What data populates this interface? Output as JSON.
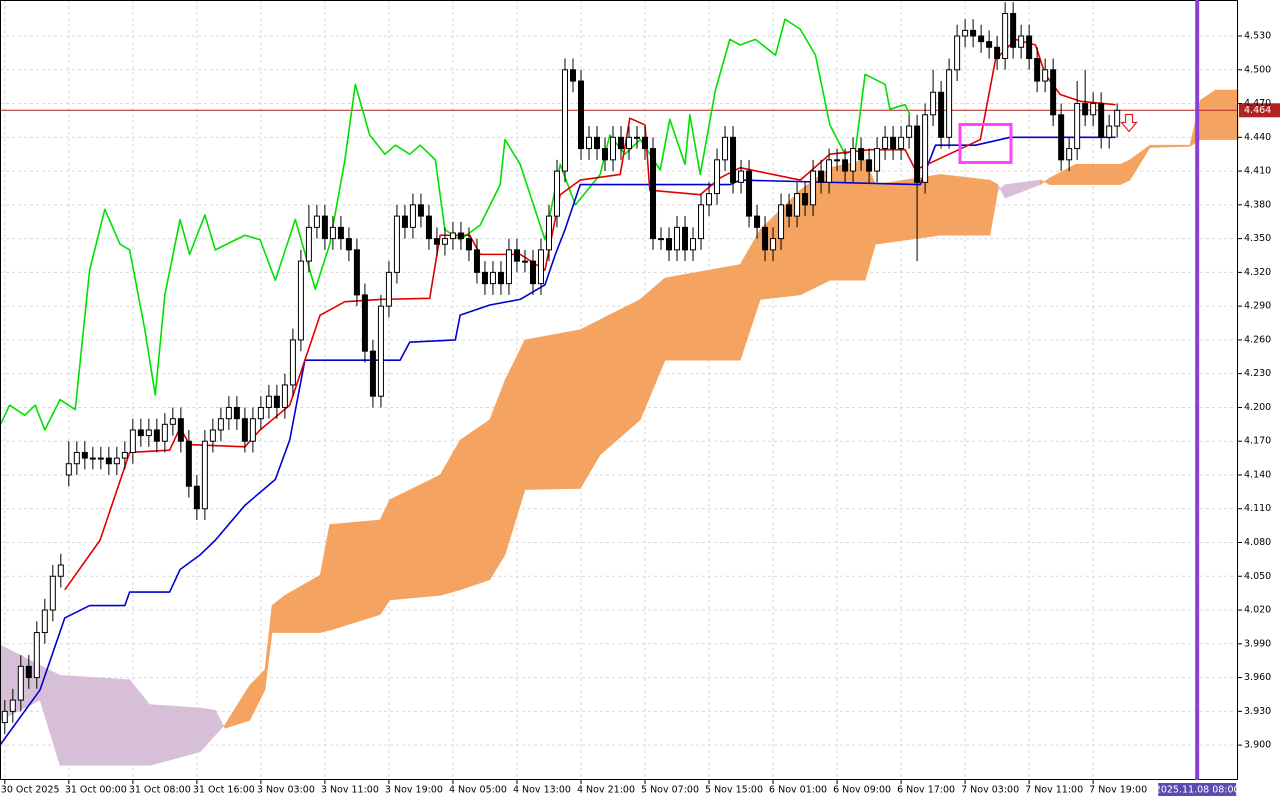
{
  "chart_data": {
    "type": "candlestick",
    "xlim": [
      -0.6,
      154.1
    ],
    "ylim": [
      3.869,
      4.562
    ],
    "grid": true,
    "bull_color": "#ffffff",
    "bear_color": "#000000",
    "yticks": [
      {
        "value": 3.9,
        "label": "3.900"
      },
      {
        "value": 3.93,
        "label": "3.930"
      },
      {
        "value": 3.96,
        "label": "3.960"
      },
      {
        "value": 3.99,
        "label": "3.990"
      },
      {
        "value": 4.02,
        "label": "4.020"
      },
      {
        "value": 4.05,
        "label": "4.050"
      },
      {
        "value": 4.08,
        "label": "4.080"
      },
      {
        "value": 4.11,
        "label": "4.110"
      },
      {
        "value": 4.14,
        "label": "4.140"
      },
      {
        "value": 4.17,
        "label": "4.170"
      },
      {
        "value": 4.2,
        "label": "4.200"
      },
      {
        "value": 4.23,
        "label": "4.230"
      },
      {
        "value": 4.26,
        "label": "4.260"
      },
      {
        "value": 4.29,
        "label": "4.290"
      },
      {
        "value": 4.32,
        "label": "4.320"
      },
      {
        "value": 4.35,
        "label": "4.350"
      },
      {
        "value": 4.38,
        "label": "4.380"
      },
      {
        "value": 4.41,
        "label": "4.410"
      },
      {
        "value": 4.44,
        "label": "4.440"
      },
      {
        "value": 4.47,
        "label": "4.470"
      },
      {
        "value": 4.5,
        "label": "4.500"
      },
      {
        "value": 4.53,
        "label": "4.530"
      }
    ],
    "xticks": [
      {
        "value": 0,
        "label": "30 Oct 2025"
      },
      {
        "value": 8,
        "label": "31 Oct 00:00"
      },
      {
        "value": 16,
        "label": "31 Oct 08:00"
      },
      {
        "value": 24,
        "label": "31 Oct 16:00"
      },
      {
        "value": 32,
        "label": "3 Nov 03:00"
      },
      {
        "value": 40,
        "label": "3 Nov 11:00"
      },
      {
        "value": 48,
        "label": "3 Nov 19:00"
      },
      {
        "value": 56,
        "label": "4 Nov 05:00"
      },
      {
        "value": 64,
        "label": "4 Nov 13:00"
      },
      {
        "value": 72,
        "label": "4 Nov 21:00"
      },
      {
        "value": 80,
        "label": "5 Nov 07:00"
      },
      {
        "value": 88,
        "label": "5 Nov 15:00"
      },
      {
        "value": 96,
        "label": "6 Nov 01:00"
      },
      {
        "value": 104,
        "label": "6 Nov 09:00"
      },
      {
        "value": 112,
        "label": "6 Nov 17:00"
      },
      {
        "value": 120,
        "label": "7 Nov 03:00"
      },
      {
        "value": 128,
        "label": "7 Nov 11:00"
      },
      {
        "value": 136,
        "label": "7 Nov 19:00"
      }
    ],
    "open": [
      3.92,
      3.93,
      3.94,
      3.97,
      3.96,
      4.0,
      4.02,
      4.05,
      4.14,
      4.15,
      4.16,
      4.155,
      4.155,
      4.155,
      4.15,
      4.155,
      4.16,
      4.18,
      4.175,
      4.18,
      4.17,
      4.185,
      4.19,
      4.17,
      4.13,
      4.11,
      4.17,
      4.18,
      4.19,
      4.2,
      4.19,
      4.17,
      4.19,
      4.2,
      4.21,
      4.2,
      4.22,
      4.26,
      4.33,
      4.36,
      4.37,
      4.35,
      4.36,
      4.35,
      4.34,
      4.3,
      4.25,
      4.21,
      4.29,
      4.32,
      4.37,
      4.36,
      4.38,
      4.37,
      4.35,
      4.345,
      4.35,
      4.355,
      4.35,
      4.34,
      4.32,
      4.31,
      4.32,
      4.31,
      4.34,
      4.33,
      4.33,
      4.31,
      4.34,
      4.37,
      4.41,
      4.5,
      4.49,
      4.43,
      4.44,
      4.43,
      4.42,
      4.44,
      4.43,
      4.44,
      4.44,
      4.43,
      4.35,
      4.35,
      4.34,
      4.36,
      4.34,
      4.35,
      4.38,
      4.39,
      4.42,
      4.44,
      4.4,
      4.41,
      4.37,
      4.36,
      4.34,
      4.35,
      4.38,
      4.37,
      4.39,
      4.38,
      4.41,
      4.4,
      4.42,
      4.42,
      4.41,
      4.43,
      4.42,
      4.41,
      4.43,
      4.44,
      4.43,
      4.44,
      4.45,
      4.4,
      4.46,
      4.48,
      4.44,
      4.5,
      4.53,
      4.535,
      4.53,
      4.525,
      4.52,
      4.51,
      4.55,
      4.52,
      4.53,
      4.51,
      4.49,
      4.5,
      4.46,
      4.42,
      4.43,
      4.47,
      4.46,
      4.47,
      4.44,
      4.45
    ],
    "high": [
      3.94,
      3.95,
      3.98,
      3.98,
      4.01,
      4.03,
      4.06,
      4.07,
      4.17,
      4.17,
      4.17,
      4.165,
      4.165,
      4.165,
      4.165,
      4.17,
      4.19,
      4.19,
      4.19,
      4.19,
      4.195,
      4.2,
      4.2,
      4.18,
      4.14,
      4.18,
      4.19,
      4.2,
      4.21,
      4.21,
      4.2,
      4.2,
      4.21,
      4.22,
      4.22,
      4.23,
      4.27,
      4.34,
      4.38,
      4.38,
      4.38,
      4.37,
      4.37,
      4.36,
      4.35,
      4.31,
      4.26,
      4.3,
      4.33,
      4.38,
      4.38,
      4.39,
      4.39,
      4.38,
      4.36,
      4.36,
      4.365,
      4.365,
      4.36,
      4.35,
      4.33,
      4.33,
      4.33,
      4.35,
      4.35,
      4.34,
      4.34,
      4.35,
      4.38,
      4.42,
      4.51,
      4.51,
      4.5,
      4.45,
      4.45,
      4.44,
      4.45,
      4.45,
      4.45,
      4.45,
      4.45,
      4.44,
      4.36,
      4.36,
      4.37,
      4.37,
      4.36,
      4.39,
      4.4,
      4.43,
      4.45,
      4.45,
      4.42,
      4.42,
      4.38,
      4.37,
      4.36,
      4.39,
      4.39,
      4.4,
      4.4,
      4.42,
      4.42,
      4.43,
      4.43,
      4.43,
      4.44,
      4.44,
      4.43,
      4.44,
      4.45,
      4.45,
      4.45,
      4.46,
      4.46,
      4.47,
      4.5,
      4.49,
      4.51,
      4.54,
      4.545,
      4.545,
      4.54,
      4.535,
      4.53,
      4.56,
      4.56,
      4.54,
      4.54,
      4.52,
      4.51,
      4.51,
      4.47,
      4.44,
      4.49,
      4.5,
      4.48,
      4.48,
      4.46,
      4.47
    ],
    "low": [
      3.91,
      3.92,
      3.93,
      3.95,
      3.95,
      3.99,
      4.01,
      4.04,
      4.13,
      4.14,
      4.145,
      4.145,
      4.145,
      4.14,
      4.14,
      4.145,
      4.15,
      4.165,
      4.165,
      4.16,
      4.16,
      4.175,
      4.16,
      4.12,
      4.1,
      4.1,
      4.16,
      4.17,
      4.18,
      4.18,
      4.16,
      4.16,
      4.18,
      4.19,
      4.19,
      4.19,
      4.21,
      4.25,
      4.32,
      4.35,
      4.34,
      4.34,
      4.34,
      4.33,
      4.29,
      4.24,
      4.2,
      4.2,
      4.28,
      4.31,
      4.35,
      4.35,
      4.36,
      4.34,
      4.335,
      4.335,
      4.34,
      4.34,
      4.33,
      4.31,
      4.3,
      4.3,
      4.3,
      4.3,
      4.32,
      4.32,
      4.3,
      4.3,
      4.33,
      4.36,
      4.4,
      4.48,
      4.42,
      4.42,
      4.42,
      4.41,
      4.41,
      4.42,
      4.42,
      4.43,
      4.42,
      4.34,
      4.34,
      4.33,
      4.33,
      4.33,
      4.33,
      4.34,
      4.37,
      4.38,
      4.41,
      4.39,
      4.39,
      4.36,
      4.35,
      4.33,
      4.33,
      4.34,
      4.36,
      4.36,
      4.37,
      4.37,
      4.39,
      4.39,
      4.41,
      4.4,
      4.4,
      4.41,
      4.4,
      4.4,
      4.42,
      4.42,
      4.42,
      4.43,
      4.33,
      4.39,
      4.45,
      4.43,
      4.43,
      4.49,
      4.52,
      4.52,
      4.515,
      4.51,
      4.5,
      4.5,
      4.51,
      4.51,
      4.5,
      4.48,
      4.48,
      4.45,
      4.41,
      4.41,
      4.42,
      4.45,
      4.45,
      4.43,
      4.43,
      4.44
    ],
    "close": [
      3.93,
      3.94,
      3.97,
      3.96,
      4.0,
      4.02,
      4.05,
      4.06,
      4.15,
      4.16,
      4.155,
      4.155,
      4.155,
      4.15,
      4.155,
      4.16,
      4.18,
      4.175,
      4.18,
      4.17,
      4.185,
      4.19,
      4.17,
      4.13,
      4.11,
      4.17,
      4.18,
      4.19,
      4.2,
      4.19,
      4.17,
      4.19,
      4.2,
      4.21,
      4.2,
      4.22,
      4.26,
      4.33,
      4.36,
      4.37,
      4.35,
      4.36,
      4.35,
      4.34,
      4.3,
      4.25,
      4.21,
      4.29,
      4.32,
      4.37,
      4.36,
      4.38,
      4.37,
      4.35,
      4.345,
      4.35,
      4.355,
      4.35,
      4.34,
      4.32,
      4.31,
      4.32,
      4.31,
      4.34,
      4.33,
      4.33,
      4.31,
      4.34,
      4.37,
      4.41,
      4.5,
      4.49,
      4.43,
      4.44,
      4.43,
      4.42,
      4.44,
      4.43,
      4.44,
      4.44,
      4.43,
      4.35,
      4.35,
      4.34,
      4.36,
      4.34,
      4.35,
      4.38,
      4.39,
      4.42,
      4.44,
      4.4,
      4.41,
      4.37,
      4.36,
      4.34,
      4.35,
      4.38,
      4.37,
      4.39,
      4.38,
      4.41,
      4.4,
      4.42,
      4.42,
      4.41,
      4.43,
      4.42,
      4.41,
      4.43,
      4.44,
      4.43,
      4.44,
      4.45,
      4.4,
      4.46,
      4.48,
      4.44,
      4.5,
      4.53,
      4.535,
      4.53,
      4.525,
      4.52,
      4.51,
      4.55,
      4.52,
      4.53,
      4.51,
      4.49,
      4.5,
      4.46,
      4.42,
      4.43,
      4.47,
      4.46,
      4.47,
      4.44,
      4.45,
      4.464
    ],
    "lines": [
      {
        "color": "#00e000",
        "x": [
          -0.6,
          0.6,
          2.5,
          3.8,
          5,
          6.9,
          8.8,
          10.6,
          12.5,
          14.4,
          15.6,
          17.5,
          18.8,
          20,
          21.9,
          23.1,
          25,
          26.3,
          30,
          31.9,
          33.8,
          36.3,
          38.8,
          40.6,
          42.5,
          43.8,
          45.6,
          47.5,
          48.8,
          50.6,
          51.9,
          53.8,
          55,
          56.9,
          59.4,
          61.9,
          62.5,
          64.4,
          67.5,
          69.4,
          71.3,
          74.4,
          75.6,
          77.5,
          79.4,
          81.9,
          83.1,
          85,
          85.6,
          86.9,
          88.8,
          90.6,
          91.9,
          93.8,
          96.3,
          97.5,
          99.4,
          101.3,
          103.1,
          105,
          106.3,
          107.5,
          110,
          110.6,
          112.5,
          113.1
        ],
        "values": [
          4.184,
          4.202,
          4.193,
          4.202,
          4.18,
          4.207,
          4.198,
          4.322,
          4.376,
          4.345,
          4.34,
          4.269,
          4.211,
          4.3,
          4.367,
          4.336,
          4.371,
          4.34,
          4.353,
          4.349,
          4.313,
          4.367,
          4.305,
          4.345,
          4.42,
          4.487,
          4.442,
          4.425,
          4.433,
          4.425,
          4.433,
          4.42,
          4.358,
          4.349,
          4.362,
          4.398,
          4.438,
          4.416,
          4.349,
          4.416,
          4.38,
          4.407,
          4.442,
          4.425,
          4.438,
          4.411,
          4.456,
          4.416,
          4.46,
          4.407,
          4.482,
          4.527,
          4.522,
          4.527,
          4.513,
          4.545,
          4.536,
          4.513,
          4.451,
          4.425,
          4.429,
          4.496,
          4.487,
          4.465,
          4.469,
          4.46
        ]
      },
      {
        "color": "#0000d0",
        "x": [
          -0.6,
          4.4,
          7.5,
          10.6,
          15,
          15.6,
          20.6,
          21.9,
          24.4,
          26.3,
          30,
          33.8,
          35.6,
          37.5,
          49.4,
          50.6,
          56.3,
          56.9,
          60.6,
          64.4,
          67.5,
          68.8,
          70,
          71.9,
          90.6,
          91.9,
          114.4,
          116.3,
          121.3,
          124.4,
          125.6,
          138.8
        ],
        "values": [
          3.9,
          3.949,
          4.013,
          4.024,
          4.024,
          4.036,
          4.036,
          4.056,
          4.069,
          4.082,
          4.113,
          4.136,
          4.171,
          4.242,
          4.242,
          4.258,
          4.26,
          4.282,
          4.291,
          4.296,
          4.309,
          4.336,
          4.358,
          4.398,
          4.398,
          4.402,
          4.398,
          4.433,
          4.433,
          4.438,
          4.44,
          4.44
        ]
      },
      {
        "color": "#e00000",
        "x": [
          7.5,
          11.9,
          15.6,
          20.6,
          21.9,
          23.1,
          30,
          31.9,
          35.6,
          39.4,
          42.5,
          46.9,
          53.1,
          54.4,
          58.1,
          59.4,
          64.4,
          67.5,
          69.4,
          71.9,
          76.9,
          78.1,
          80,
          80.6,
          86.9,
          89.4,
          91.9,
          99.4,
          103.1,
          108.1,
          112.5,
          113.8,
          121.9,
          123.8,
          126.3,
          128.8,
          130,
          131.9,
          134.4,
          138.8
        ],
        "values": [
          4.038,
          4.082,
          4.16,
          4.162,
          4.182,
          4.167,
          4.165,
          4.18,
          4.202,
          4.282,
          4.294,
          4.296,
          4.297,
          4.353,
          4.353,
          4.336,
          4.336,
          4.322,
          4.389,
          4.402,
          4.407,
          4.457,
          4.451,
          4.393,
          4.389,
          4.404,
          4.413,
          4.402,
          4.425,
          4.429,
          4.429,
          4.411,
          4.438,
          4.509,
          4.527,
          4.522,
          4.496,
          4.478,
          4.472,
          4.469
        ]
      }
    ],
    "cloud": {
      "up_color": "#f4a460",
      "down_color": "#d8bfd8",
      "x": [
        -0.6,
        4.4,
        6.9,
        15.6,
        18.1,
        24.4,
        26.3,
        27.5,
        30.6,
        32.5,
        33.4,
        35,
        39.4,
        40.6,
        46.9,
        48.1,
        54.4,
        56.9,
        60.6,
        62.5,
        65,
        71.9,
        74.4,
        79.4,
        82.5,
        91.9,
        94.4,
        99.4,
        103.1,
        107.5,
        108.8,
        116.9,
        123.1,
        124.1,
        125,
        129.4,
        130.6,
        133.8,
        139.4,
        140.6,
        143.1,
        148.1,
        149.4,
        151.3,
        154.1
      ],
      "span_a": [
        3.922,
        3.94,
        3.882,
        3.882,
        3.882,
        3.894,
        3.909,
        3.918,
        3.953,
        3.967,
        4.024,
        4.033,
        4.051,
        4.096,
        4.1,
        4.118,
        4.14,
        4.171,
        4.189,
        4.224,
        4.26,
        4.269,
        4.278,
        4.296,
        4.315,
        4.327,
        4.358,
        4.393,
        4.413,
        4.42,
        4.398,
        4.407,
        4.402,
        4.398,
        4.386,
        4.398,
        4.404,
        4.416,
        4.416,
        4.42,
        4.433,
        4.433,
        4.473,
        4.482,
        4.482
      ],
      "span_b": [
        3.989,
        3.971,
        3.962,
        3.958,
        3.936,
        3.933,
        3.931,
        3.915,
        3.922,
        3.949,
        4.0,
        4.0,
        4.0,
        4.002,
        4.016,
        4.029,
        4.033,
        4.038,
        4.047,
        4.069,
        4.127,
        4.128,
        4.158,
        4.189,
        4.242,
        4.242,
        4.296,
        4.3,
        4.313,
        4.313,
        4.345,
        4.353,
        4.353,
        4.393,
        4.398,
        4.402,
        4.398,
        4.398,
        4.398,
        4.402,
        4.431,
        4.432,
        4.438,
        4.438,
        4.438
      ]
    },
    "price_line": {
      "value": 4.464,
      "label": "4.464",
      "color": "#b22222"
    },
    "vline": {
      "value": 149,
      "label": "2025.11.08 08:00",
      "color": "#8a3fd8"
    }
  }
}
